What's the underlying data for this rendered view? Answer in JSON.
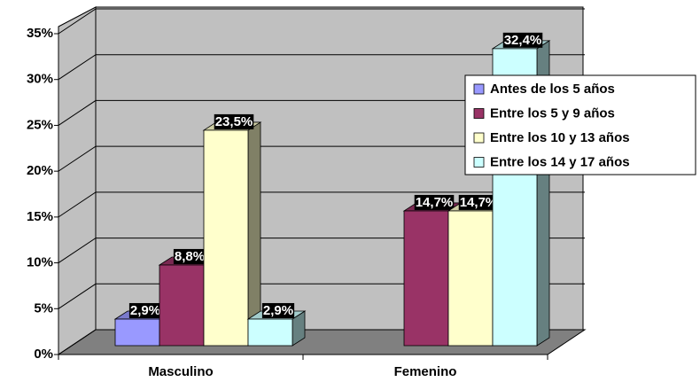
{
  "chart_data": {
    "type": "bar3d",
    "categories": [
      "Masculino",
      "Femenino"
    ],
    "series": [
      {
        "name": "Antes de los 5 años",
        "color": "#9999ff",
        "values": [
          2.9,
          null
        ],
        "value_labels": [
          "2,9%",
          null
        ]
      },
      {
        "name": "Entre los 5 y 9 años",
        "color": "#993366",
        "values": [
          8.8,
          14.7
        ],
        "value_labels": [
          "8,8%",
          "14,7%"
        ]
      },
      {
        "name": "Entre los 10 y 13 años",
        "color": "#ffffcc",
        "values": [
          23.5,
          14.7
        ],
        "value_labels": [
          "23,5%",
          "14,7%"
        ]
      },
      {
        "name": "Entre los 14 y 17 años",
        "color": "#ccffff",
        "values": [
          2.9,
          32.4
        ],
        "value_labels": [
          "2,9%",
          "32,4%"
        ]
      }
    ],
    "ylim": [
      0,
      35
    ],
    "yticks": [
      {
        "value": 0,
        "label": "0%"
      },
      {
        "value": 5,
        "label": "5%"
      },
      {
        "value": 10,
        "label": "10%"
      },
      {
        "value": 15,
        "label": "15%"
      },
      {
        "value": 20,
        "label": "20%"
      },
      {
        "value": 25,
        "label": "25%"
      },
      {
        "value": 30,
        "label": "30%"
      },
      {
        "value": 35,
        "label": "35%"
      }
    ],
    "grid": true,
    "legend": "right"
  }
}
